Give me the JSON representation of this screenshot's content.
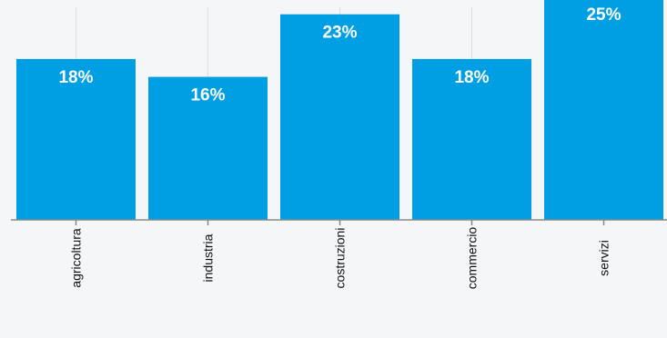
{
  "chart_data": {
    "type": "bar",
    "categories": [
      "agricoltura",
      "industria",
      "costruzioni",
      "commercio",
      "servizi"
    ],
    "values": [
      18,
      16,
      23,
      18,
      25
    ],
    "value_labels": [
      "18%",
      "16%",
      "23%",
      "18%",
      "25%"
    ],
    "title": "",
    "xlabel": "",
    "ylabel": "",
    "ylim": [
      0,
      24.6
    ],
    "grid": "vertical",
    "legend": "none",
    "colors": {
      "bar": "#009fe3",
      "grid": "#dddddd",
      "axis": "#888888",
      "value_label": "#ffffff",
      "category_label": "#111111"
    }
  }
}
